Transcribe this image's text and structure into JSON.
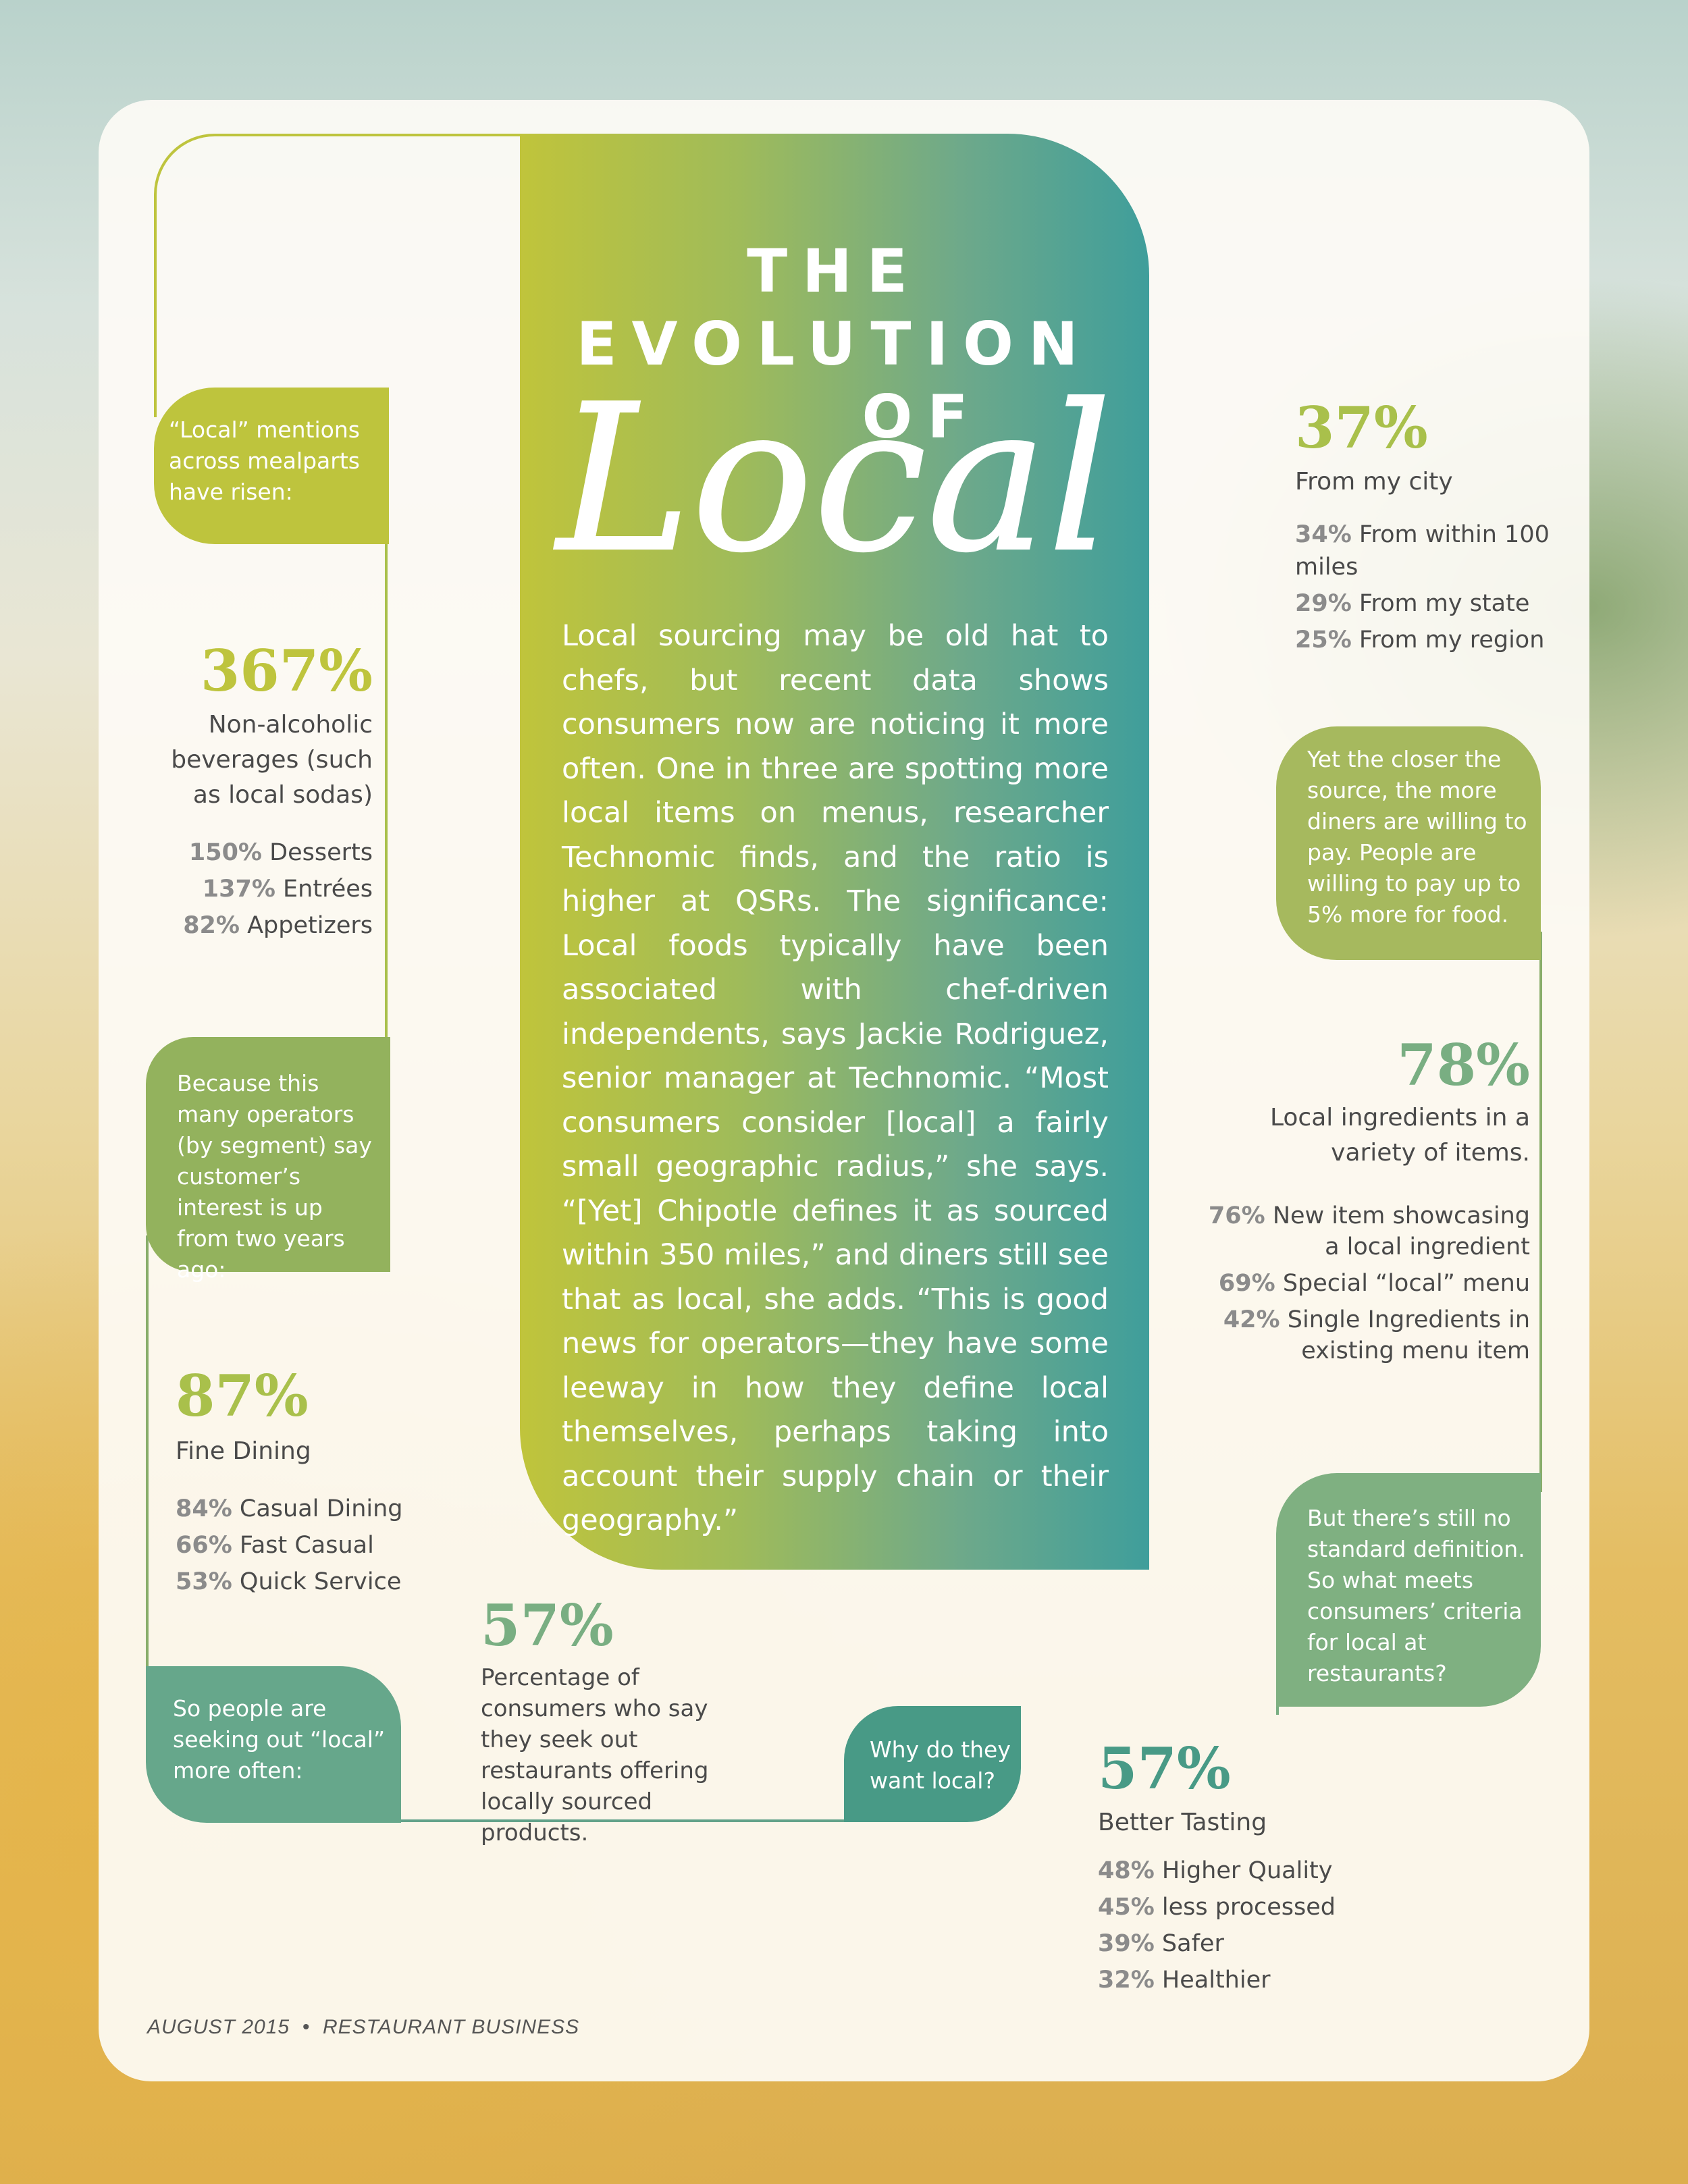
{
  "colors": {
    "olive": "#bec43d",
    "green": "#93b25d",
    "sage": "#79ae82",
    "teal": "#5fa38a",
    "dark_teal": "#489a86",
    "yellow_green": "#a9c04b"
  },
  "title": {
    "line1": "THE",
    "line2": "EVOLUTION",
    "line3": "OF",
    "line4": "Local"
  },
  "body": "Local sourcing may be old hat to chefs, but recent data shows consumers now are noticing it more often. One in three are spotting more local items on menus, researcher Technomic finds, and the ratio is higher at QSRs. The significance: Local foods typically have been associated with chef-driven independents, says Jackie Rodriguez, senior manager at Technomic. “Most consumers consider [local] a fairly small geographic radius,” she says. “[Yet] Chipotle defines it as sourced within 350 miles,” and diners still see that as local, she adds. “This is good news for operators—they have some leeway in how they define local themselves, perhaps taking into account their supply chain or their geography.”",
  "callouts": {
    "mentions": "“Local” mentions across mealparts have risen:",
    "operators": "Because this many operators (by segment) say customer’s interest is up from two years ago:",
    "seeking": "So people are seeking out “local” more often:",
    "why": "Why do they want local?",
    "closer": "Yet the closer the source, the more diners are willing to pay. People are willing to pay up to 5% more for food.",
    "definition": "But there’s still no standard definition. So what meets consumers’ criteria for local at restaurants?"
  },
  "stats": {
    "mealparts": {
      "big": "367%",
      "label": "Non-alcoholic beverages (such as local sodas)",
      "items": [
        {
          "pct": "150%",
          "text": "Desserts"
        },
        {
          "pct": "137%",
          "text": "Entrées"
        },
        {
          "pct": "82%",
          "text": "Appetizers"
        }
      ]
    },
    "segments": {
      "big": "87%",
      "label": "Fine Dining",
      "items": [
        {
          "pct": "84%",
          "text": "Casual Dining"
        },
        {
          "pct": "66%",
          "text": "Fast Casual"
        },
        {
          "pct": "53%",
          "text": "Quick Service"
        }
      ]
    },
    "seek": {
      "big": "57%",
      "label": "Percentage of consumers who say they seek out restaurants offering locally sourced products."
    },
    "reasons": {
      "big": "57%",
      "label": "Better Tasting",
      "items": [
        {
          "pct": "48%",
          "text": "Higher Quality"
        },
        {
          "pct": "45%",
          "text": "less processed"
        },
        {
          "pct": "39%",
          "text": "Safer"
        },
        {
          "pct": "32%",
          "text": "Healthier"
        }
      ]
    },
    "distance": {
      "big": "37%",
      "label": "From my city",
      "items": [
        {
          "pct": "34%",
          "text": "From within 100 miles"
        },
        {
          "pct": "29%",
          "text": "From my state"
        },
        {
          "pct": "25%",
          "text": "From my region"
        }
      ]
    },
    "criteria": {
      "big": "78%",
      "label": "Local ingredients in a variety of items.",
      "items": [
        {
          "pct": "76%",
          "text": "New item showcasing a local ingredient"
        },
        {
          "pct": "69%",
          "text": "Special “local” menu"
        },
        {
          "pct": "42%",
          "text": "Single Ingredients in existing menu item"
        }
      ]
    }
  },
  "footer": {
    "date": "AUGUST 2015",
    "separator": "•",
    "publication": "RESTAURANT BUSINESS"
  }
}
